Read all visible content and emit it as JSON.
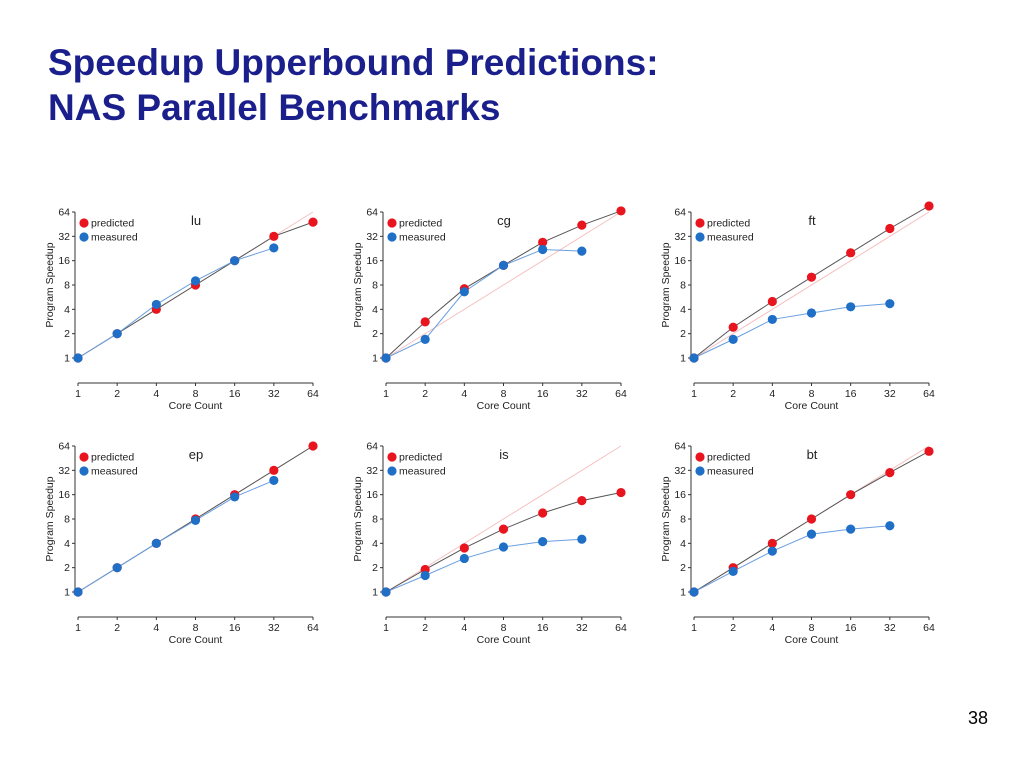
{
  "slide": {
    "title_line1": "Speedup Upperbound Predictions:",
    "title_line2": "NAS Parallel Benchmarks",
    "page_number": "38"
  },
  "colors": {
    "title": "#1a1f8c",
    "predicted": "#e8141e",
    "measured": "#1f6fc7",
    "ideal": "#f5c0c0",
    "predicted_line": "#555555",
    "measured_line": "#6a9fe0"
  },
  "chart_data": [
    {
      "type": "line",
      "title": "lu",
      "xlabel": "Core Count",
      "ylabel": "Program Speedup",
      "x": [
        1,
        2,
        4,
        8,
        16,
        32,
        64
      ],
      "y_ticks": [
        1,
        2,
        4,
        8,
        16,
        32,
        64
      ],
      "log_scale": "both",
      "xlim": [
        1,
        64
      ],
      "ylim": [
        1,
        64
      ],
      "legend_position": "top-left",
      "grid": false,
      "series": [
        {
          "name": "predicted",
          "x": [
            1,
            2,
            4,
            8,
            16,
            32,
            64
          ],
          "values": [
            1,
            2,
            4,
            8,
            16,
            32,
            48
          ]
        },
        {
          "name": "measured",
          "x": [
            1,
            2,
            4,
            8,
            16,
            32
          ],
          "values": [
            1,
            2,
            4.6,
            9,
            16,
            23
          ]
        }
      ]
    },
    {
      "type": "line",
      "title": "cg",
      "xlabel": "Core Count",
      "ylabel": "Program Speedup",
      "x": [
        1,
        2,
        4,
        8,
        16,
        32,
        64
      ],
      "y_ticks": [
        1,
        2,
        4,
        8,
        16,
        32,
        64
      ],
      "log_scale": "both",
      "xlim": [
        1,
        64
      ],
      "ylim": [
        1,
        64
      ],
      "legend_position": "top-left",
      "grid": false,
      "series": [
        {
          "name": "predicted",
          "x": [
            1,
            2,
            4,
            8,
            16,
            32,
            64
          ],
          "values": [
            1,
            2.8,
            7.2,
            14,
            27,
            44,
            66
          ]
        },
        {
          "name": "measured",
          "x": [
            1,
            2,
            4,
            8,
            16,
            32
          ],
          "values": [
            1,
            1.7,
            6.6,
            14,
            22,
            21
          ]
        }
      ]
    },
    {
      "type": "line",
      "title": "ft",
      "xlabel": "Core Count",
      "ylabel": "Program Speedup",
      "x": [
        1,
        2,
        4,
        8,
        16,
        32,
        64
      ],
      "y_ticks": [
        1,
        2,
        4,
        8,
        16,
        32,
        64
      ],
      "log_scale": "both",
      "xlim": [
        1,
        64
      ],
      "ylim": [
        1,
        64
      ],
      "legend_position": "top-left",
      "grid": false,
      "series": [
        {
          "name": "predicted",
          "x": [
            1,
            2,
            4,
            8,
            16,
            32,
            64
          ],
          "values": [
            1,
            2.4,
            5,
            10,
            20,
            40,
            76
          ]
        },
        {
          "name": "measured",
          "x": [
            1,
            2,
            4,
            8,
            16,
            32
          ],
          "values": [
            1,
            1.7,
            3,
            3.6,
            4.3,
            4.7
          ]
        }
      ]
    },
    {
      "type": "line",
      "title": "ep",
      "xlabel": "Core Count",
      "ylabel": "Program Speedup",
      "x": [
        1,
        2,
        4,
        8,
        16,
        32,
        64
      ],
      "y_ticks": [
        1,
        2,
        4,
        8,
        16,
        32,
        64
      ],
      "log_scale": "both",
      "xlim": [
        1,
        64
      ],
      "ylim": [
        1,
        64
      ],
      "legend_position": "top-left",
      "grid": false,
      "series": [
        {
          "name": "predicted",
          "x": [
            1,
            2,
            4,
            8,
            16,
            32,
            64
          ],
          "values": [
            1,
            2,
            4,
            8,
            16,
            32,
            64
          ]
        },
        {
          "name": "measured",
          "x": [
            1,
            2,
            4,
            8,
            16,
            32
          ],
          "values": [
            1,
            2,
            4,
            7.7,
            15,
            24
          ]
        }
      ]
    },
    {
      "type": "line",
      "title": "is",
      "xlabel": "Core Count",
      "ylabel": "Program Speedup",
      "x": [
        1,
        2,
        4,
        8,
        16,
        32,
        64
      ],
      "y_ticks": [
        1,
        2,
        4,
        8,
        16,
        32,
        64
      ],
      "log_scale": "both",
      "xlim": [
        1,
        64
      ],
      "ylim": [
        1,
        64
      ],
      "legend_position": "top-left",
      "grid": false,
      "series": [
        {
          "name": "predicted",
          "x": [
            1,
            2,
            4,
            8,
            16,
            32,
            64
          ],
          "values": [
            1,
            1.9,
            3.5,
            6,
            9.5,
            13.5,
            17
          ]
        },
        {
          "name": "measured",
          "x": [
            1,
            2,
            4,
            8,
            16,
            32
          ],
          "values": [
            1,
            1.6,
            2.6,
            3.6,
            4.2,
            4.5
          ]
        }
      ]
    },
    {
      "type": "line",
      "title": "bt",
      "xlabel": "Core Count",
      "ylabel": "Program Speedup",
      "x": [
        1,
        2,
        4,
        8,
        16,
        32,
        64
      ],
      "y_ticks": [
        1,
        2,
        4,
        8,
        16,
        32,
        64
      ],
      "log_scale": "both",
      "xlim": [
        1,
        64
      ],
      "ylim": [
        1,
        64
      ],
      "legend_position": "top-left",
      "grid": false,
      "series": [
        {
          "name": "predicted",
          "x": [
            1,
            2,
            4,
            8,
            16,
            32,
            64
          ],
          "values": [
            1,
            2,
            4,
            8,
            16,
            30,
            55
          ]
        },
        {
          "name": "measured",
          "x": [
            1,
            2,
            4,
            8,
            16,
            32
          ],
          "values": [
            1,
            1.8,
            3.2,
            5.2,
            6,
            6.6
          ]
        }
      ]
    }
  ]
}
